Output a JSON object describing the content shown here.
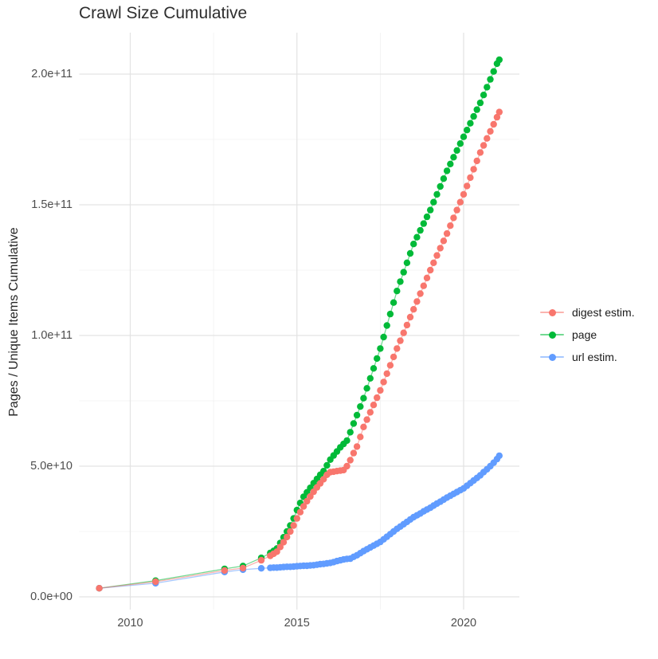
{
  "chart": {
    "title": "Crawl Size Cumulative",
    "y_axis": {
      "title": "Pages / Unique Items Cumulative",
      "tick_labels": [
        "0.0e+00",
        "5.0e+10",
        "1.0e+11",
        "1.5e+11",
        "2.0e+11"
      ],
      "tick_values_e9": [
        0,
        50,
        100,
        150,
        200
      ],
      "minor_grid_values_e9": [
        25,
        75,
        125,
        175
      ]
    },
    "x_axis": {
      "title": "",
      "tick_labels": [
        "2010",
        "2015",
        "2020"
      ],
      "tick_values": [
        2010,
        2015,
        2020
      ],
      "minor_grid_values": [
        2012.5,
        2017.5
      ]
    },
    "colors": {
      "background": "#ffffff",
      "grid_major": "#e3e3e3",
      "grid_minor": "#f0f0f0",
      "axis_text": "#4d4d4d",
      "title_text": "#2e2e2e",
      "digest": "#F8766D",
      "page": "#00BA38",
      "url": "#619CFF"
    }
  },
  "chart_data": {
    "type": "scatter",
    "title": "Crawl Size Cumulative",
    "xlabel": "",
    "ylabel": "Pages / Unique Items Cumulative",
    "x_unit": "year (decimal)",
    "y_unit": "pages / unique items, billions (1e9)",
    "xlim": [
      2008.5,
      2021.7
    ],
    "ylim_e9": [
      -5,
      216
    ],
    "grid": true,
    "legend_position": "right",
    "point_and_line": true,
    "draw_order": [
      "page",
      "url estim.",
      "digest estim."
    ],
    "series": [
      {
        "name": "digest estim.",
        "color": "#F8766D",
        "points": [
          [
            2009.07,
            3.3
          ],
          [
            2010.76,
            5.8
          ],
          [
            2012.83,
            10.1
          ],
          [
            2013.38,
            11.0
          ],
          [
            2013.93,
            14.0
          ],
          [
            2014.2,
            15.7
          ],
          [
            2014.3,
            16.5
          ],
          [
            2014.4,
            17.3
          ],
          [
            2014.5,
            19.1
          ],
          [
            2014.6,
            20.9
          ],
          [
            2014.7,
            22.9
          ],
          [
            2014.8,
            25.0
          ],
          [
            2014.9,
            27.3
          ],
          [
            2015.0,
            30.0
          ],
          [
            2015.1,
            32.4
          ],
          [
            2015.2,
            34.6
          ],
          [
            2015.3,
            36.6
          ],
          [
            2015.4,
            38.4
          ],
          [
            2015.5,
            40.2
          ],
          [
            2015.6,
            41.9
          ],
          [
            2015.7,
            43.4
          ],
          [
            2015.8,
            45.0
          ],
          [
            2015.9,
            46.7
          ],
          [
            2016.0,
            47.7
          ],
          [
            2016.1,
            47.9
          ],
          [
            2016.2,
            48.1
          ],
          [
            2016.3,
            48.3
          ],
          [
            2016.4,
            48.5
          ],
          [
            2016.5,
            50.0
          ],
          [
            2016.6,
            52.3
          ],
          [
            2016.7,
            55.0
          ],
          [
            2016.8,
            57.5
          ],
          [
            2016.9,
            61.2
          ],
          [
            2017.0,
            65.0
          ],
          [
            2017.1,
            67.8
          ],
          [
            2017.2,
            70.6
          ],
          [
            2017.3,
            73.4
          ],
          [
            2017.4,
            76.2
          ],
          [
            2017.5,
            79.0
          ],
          [
            2017.6,
            82.2
          ],
          [
            2017.7,
            85.4
          ],
          [
            2017.8,
            88.6
          ],
          [
            2017.9,
            91.8
          ],
          [
            2018.0,
            95.0
          ],
          [
            2018.1,
            98.0
          ],
          [
            2018.2,
            101.0
          ],
          [
            2018.3,
            104.0
          ],
          [
            2018.4,
            107.0
          ],
          [
            2018.5,
            110.0
          ],
          [
            2018.6,
            113.0
          ],
          [
            2018.7,
            116.0
          ],
          [
            2018.8,
            119.0
          ],
          [
            2018.9,
            122.0
          ],
          [
            2019.0,
            125.0
          ],
          [
            2019.1,
            127.8
          ],
          [
            2019.2,
            130.6
          ],
          [
            2019.3,
            133.4
          ],
          [
            2019.4,
            136.2
          ],
          [
            2019.5,
            139.0
          ],
          [
            2019.6,
            142.0
          ],
          [
            2019.7,
            145.0
          ],
          [
            2019.8,
            148.0
          ],
          [
            2019.9,
            151.0
          ],
          [
            2020.0,
            154.0
          ],
          [
            2020.1,
            157.2
          ],
          [
            2020.2,
            160.4
          ],
          [
            2020.3,
            163.6
          ],
          [
            2020.4,
            166.8
          ],
          [
            2020.5,
            170.0
          ],
          [
            2020.6,
            172.7
          ],
          [
            2020.7,
            175.4
          ],
          [
            2020.8,
            178.1
          ],
          [
            2020.9,
            180.8
          ],
          [
            2021.0,
            183.5
          ],
          [
            2021.07,
            185.5
          ]
        ]
      },
      {
        "name": "page",
        "color": "#00BA38",
        "points": [
          [
            2009.07,
            3.3
          ],
          [
            2010.76,
            6.2
          ],
          [
            2012.83,
            10.7
          ],
          [
            2013.38,
            11.8
          ],
          [
            2013.93,
            14.9
          ],
          [
            2014.2,
            16.8
          ],
          [
            2014.3,
            17.6
          ],
          [
            2014.4,
            18.5
          ],
          [
            2014.5,
            20.6
          ],
          [
            2014.6,
            22.8
          ],
          [
            2014.7,
            25.0
          ],
          [
            2014.8,
            27.3
          ],
          [
            2014.9,
            30.0
          ],
          [
            2015.0,
            33.2
          ],
          [
            2015.1,
            35.9
          ],
          [
            2015.2,
            38.3
          ],
          [
            2015.3,
            40.0
          ],
          [
            2015.4,
            41.7
          ],
          [
            2015.5,
            43.5
          ],
          [
            2015.6,
            45.1
          ],
          [
            2015.7,
            46.7
          ],
          [
            2015.8,
            48.1
          ],
          [
            2015.9,
            50.3
          ],
          [
            2016.0,
            52.5
          ],
          [
            2016.1,
            54.1
          ],
          [
            2016.2,
            55.6
          ],
          [
            2016.3,
            57.2
          ],
          [
            2016.4,
            58.5
          ],
          [
            2016.5,
            59.8
          ],
          [
            2016.6,
            63.0
          ],
          [
            2016.7,
            66.3
          ],
          [
            2016.8,
            69.5
          ],
          [
            2016.9,
            72.8
          ],
          [
            2017.0,
            76.0
          ],
          [
            2017.1,
            79.8
          ],
          [
            2017.2,
            83.6
          ],
          [
            2017.3,
            87.4
          ],
          [
            2017.4,
            91.2
          ],
          [
            2017.5,
            95.0
          ],
          [
            2017.6,
            99.4
          ],
          [
            2017.7,
            103.8
          ],
          [
            2017.8,
            108.2
          ],
          [
            2017.9,
            112.6
          ],
          [
            2018.0,
            117.0
          ],
          [
            2018.1,
            120.6
          ],
          [
            2018.2,
            124.2
          ],
          [
            2018.3,
            127.8
          ],
          [
            2018.4,
            131.4
          ],
          [
            2018.5,
            135.0
          ],
          [
            2018.6,
            137.6
          ],
          [
            2018.7,
            140.2
          ],
          [
            2018.8,
            142.8
          ],
          [
            2018.9,
            145.4
          ],
          [
            2019.0,
            148.0
          ],
          [
            2019.1,
            151.0
          ],
          [
            2019.2,
            154.0
          ],
          [
            2019.3,
            157.0
          ],
          [
            2019.4,
            160.0
          ],
          [
            2019.5,
            163.0
          ],
          [
            2019.6,
            165.6
          ],
          [
            2019.7,
            168.2
          ],
          [
            2019.8,
            170.8
          ],
          [
            2019.9,
            173.4
          ],
          [
            2020.0,
            176.0
          ],
          [
            2020.1,
            178.6
          ],
          [
            2020.2,
            181.2
          ],
          [
            2020.3,
            183.8
          ],
          [
            2020.4,
            186.4
          ],
          [
            2020.5,
            189.0
          ],
          [
            2020.6,
            192.0
          ],
          [
            2020.7,
            195.0
          ],
          [
            2020.8,
            198.0
          ],
          [
            2020.9,
            201.0
          ],
          [
            2021.0,
            204.0
          ],
          [
            2021.07,
            205.5
          ]
        ]
      },
      {
        "name": "url estim.",
        "color": "#619CFF",
        "points": [
          [
            2009.07,
            3.3
          ],
          [
            2010.76,
            5.2
          ],
          [
            2012.83,
            9.5
          ],
          [
            2013.38,
            10.4
          ],
          [
            2013.93,
            10.9
          ],
          [
            2014.2,
            11.1
          ],
          [
            2014.3,
            11.2
          ],
          [
            2014.4,
            11.2
          ],
          [
            2014.5,
            11.3
          ],
          [
            2014.6,
            11.4
          ],
          [
            2014.7,
            11.5
          ],
          [
            2014.8,
            11.5
          ],
          [
            2014.9,
            11.6
          ],
          [
            2015.0,
            11.7
          ],
          [
            2015.1,
            11.8
          ],
          [
            2015.2,
            11.9
          ],
          [
            2015.3,
            11.9
          ],
          [
            2015.4,
            12.0
          ],
          [
            2015.5,
            12.1
          ],
          [
            2015.6,
            12.3
          ],
          [
            2015.7,
            12.5
          ],
          [
            2015.8,
            12.6
          ],
          [
            2015.9,
            12.8
          ],
          [
            2016.0,
            13.0
          ],
          [
            2016.1,
            13.3
          ],
          [
            2016.2,
            13.7
          ],
          [
            2016.3,
            14.0
          ],
          [
            2016.4,
            14.3
          ],
          [
            2016.5,
            14.5
          ],
          [
            2016.6,
            14.6
          ],
          [
            2016.7,
            15.3
          ],
          [
            2016.8,
            15.9
          ],
          [
            2016.9,
            16.7
          ],
          [
            2017.0,
            17.5
          ],
          [
            2017.1,
            18.2
          ],
          [
            2017.2,
            18.9
          ],
          [
            2017.3,
            19.6
          ],
          [
            2017.4,
            20.3
          ],
          [
            2017.5,
            21.0
          ],
          [
            2017.6,
            22.0
          ],
          [
            2017.7,
            23.0
          ],
          [
            2017.8,
            24.0
          ],
          [
            2017.9,
            25.0
          ],
          [
            2018.0,
            26.0
          ],
          [
            2018.1,
            26.9
          ],
          [
            2018.2,
            27.8
          ],
          [
            2018.3,
            28.7
          ],
          [
            2018.4,
            29.6
          ],
          [
            2018.5,
            30.5
          ],
          [
            2018.6,
            31.2
          ],
          [
            2018.7,
            31.9
          ],
          [
            2018.8,
            32.7
          ],
          [
            2018.9,
            33.4
          ],
          [
            2019.0,
            34.1
          ],
          [
            2019.1,
            34.9
          ],
          [
            2019.2,
            35.7
          ],
          [
            2019.3,
            36.4
          ],
          [
            2019.4,
            37.2
          ],
          [
            2019.5,
            38.0
          ],
          [
            2019.6,
            38.7
          ],
          [
            2019.7,
            39.4
          ],
          [
            2019.8,
            40.1
          ],
          [
            2019.9,
            40.8
          ],
          [
            2020.0,
            41.5
          ],
          [
            2020.1,
            42.5
          ],
          [
            2020.2,
            43.5
          ],
          [
            2020.3,
            44.5
          ],
          [
            2020.4,
            45.5
          ],
          [
            2020.5,
            46.5
          ],
          [
            2020.6,
            47.7
          ],
          [
            2020.7,
            48.8
          ],
          [
            2020.8,
            50.0
          ],
          [
            2020.9,
            51.3
          ],
          [
            2021.0,
            52.7
          ],
          [
            2021.07,
            54.0
          ]
        ]
      }
    ]
  }
}
